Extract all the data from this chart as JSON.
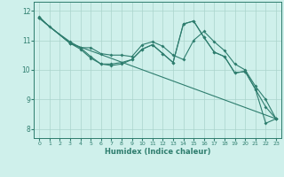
{
  "bg_color": "#cff0eb",
  "grid_color": "#aad4cc",
  "line_color": "#2e7d6e",
  "xlabel": "Humidex (Indice chaleur)",
  "xlim": [
    -0.5,
    23.5
  ],
  "ylim": [
    7.7,
    12.3
  ],
  "yticks": [
    8,
    9,
    10,
    11,
    12
  ],
  "xticks": [
    0,
    1,
    2,
    3,
    4,
    5,
    6,
    7,
    8,
    9,
    10,
    11,
    12,
    13,
    14,
    15,
    16,
    17,
    18,
    19,
    20,
    21,
    22,
    23
  ],
  "series1": {
    "x": [
      0,
      1,
      3,
      4,
      5,
      6,
      7,
      8,
      9,
      10,
      11,
      12,
      13,
      14,
      15,
      16,
      17,
      18,
      19,
      20,
      21,
      22,
      23
    ],
    "y": [
      11.8,
      11.45,
      10.95,
      10.75,
      10.75,
      10.55,
      10.5,
      10.5,
      10.45,
      10.85,
      10.95,
      10.8,
      10.5,
      10.35,
      11.0,
      11.3,
      10.95,
      10.65,
      10.2,
      10.0,
      9.45,
      9.0,
      8.35
    ]
  },
  "series2": {
    "x": [
      0,
      3,
      4,
      5,
      6,
      7,
      8,
      9,
      10,
      11,
      12,
      13,
      14,
      15,
      16,
      17,
      18,
      19,
      20,
      21,
      22,
      23
    ],
    "y": [
      11.75,
      10.9,
      10.7,
      10.4,
      10.2,
      10.2,
      10.25,
      10.35,
      10.7,
      10.85,
      10.55,
      10.25,
      11.55,
      11.65,
      11.1,
      10.6,
      10.45,
      9.9,
      9.95,
      9.35,
      8.75,
      8.35
    ]
  },
  "series3": {
    "x": [
      0,
      3,
      4,
      5,
      6,
      7,
      8,
      9,
      10,
      11,
      12,
      13,
      14,
      15,
      16,
      17,
      18,
      19,
      20,
      21,
      22,
      23
    ],
    "y": [
      11.75,
      10.9,
      10.75,
      10.45,
      10.2,
      10.15,
      10.2,
      10.35,
      10.7,
      10.85,
      10.55,
      10.25,
      11.55,
      11.65,
      11.1,
      10.6,
      10.45,
      9.9,
      9.95,
      9.35,
      8.2,
      8.35
    ]
  },
  "series4": {
    "x": [
      0,
      3,
      23
    ],
    "y": [
      11.75,
      10.9,
      8.35
    ]
  }
}
